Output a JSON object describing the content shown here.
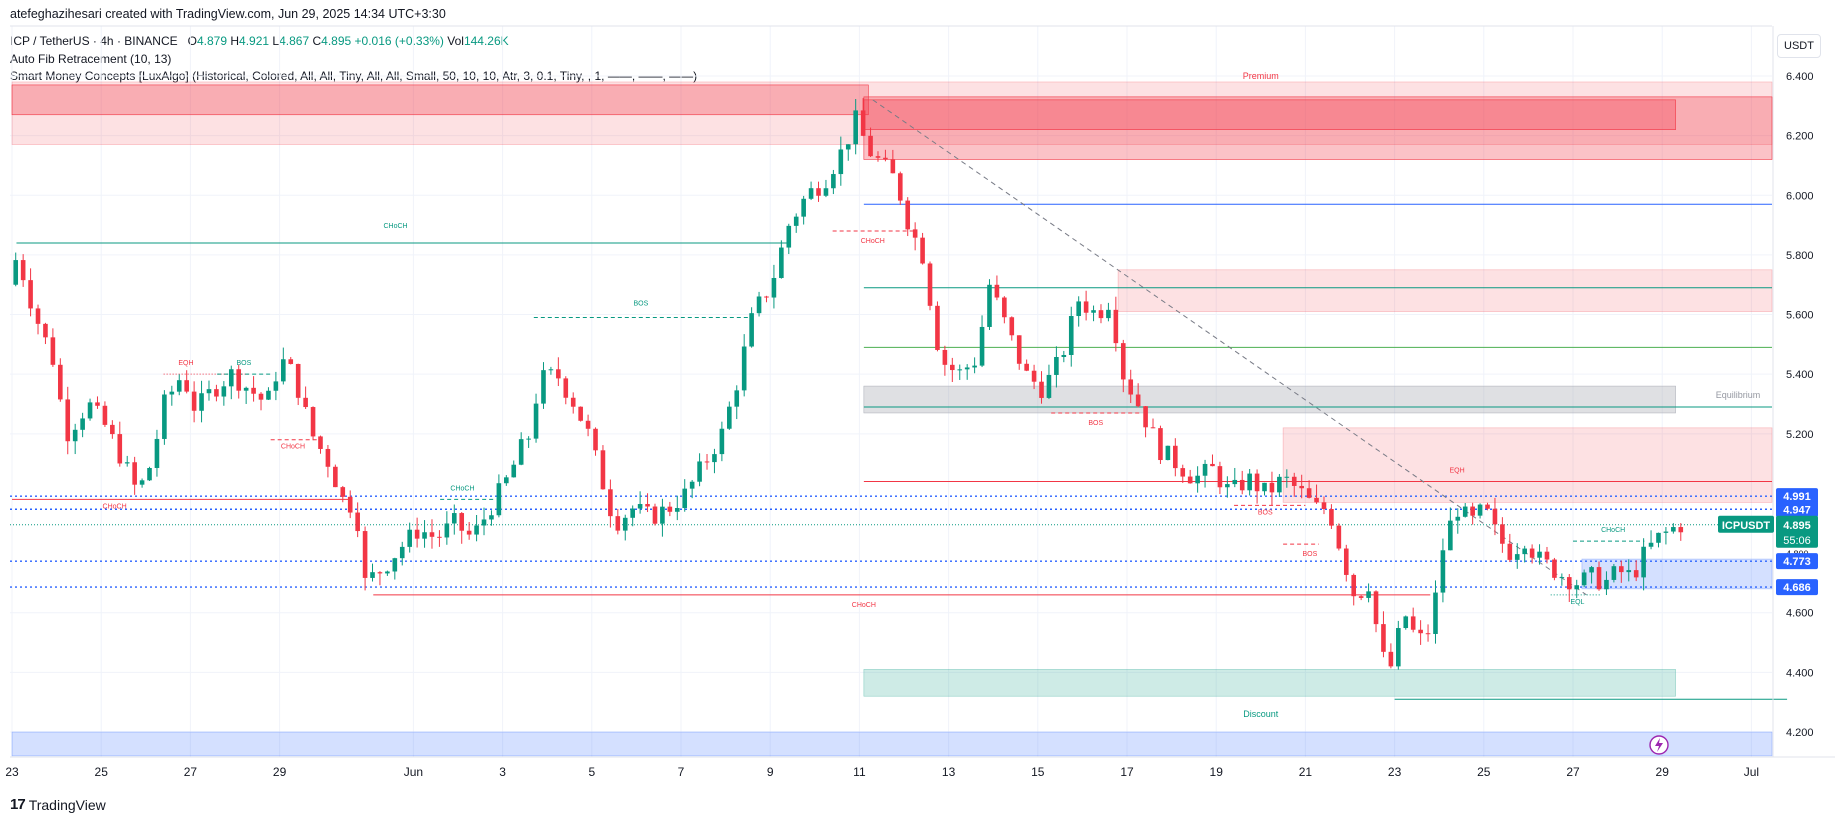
{
  "header": {
    "author_line": "atefeghazihesari created with TradingView.com, Jun 29, 2025 14:34 UTC+3:30",
    "symbol": "ICP / TetherUS · 4h · BINANCE",
    "ohlc": {
      "o_label": "O",
      "o": "4.879",
      "h_label": "H",
      "h": "4.921",
      "l_label": "L",
      "l": "4.867",
      "c_label": "C",
      "c": "4.895",
      "change": "+0.016 (+0.33%)",
      "vol_label": "Vol",
      "vol": "144.26K"
    },
    "indicator_fib": "Auto Fib Retracement (10, 13)",
    "indicator_smc": "Smart Money Concepts [LuxAlgo] (Historical, Colored, All, All, Tiny, All, All, Small, 50, 10, 10, Atr, 3, 0.1, Tiny, , 1, ——, ——, ——)"
  },
  "currency_button": "USDT",
  "brand": "TradingView",
  "colors": {
    "bull": "#089981",
    "bear": "#f23645",
    "blue": "#2962ff",
    "grid": "#f0f3fa"
  },
  "chart_data": {
    "type": "candlestick",
    "title": "ICP / TetherUS · 4h · BINANCE",
    "ylim": [
      4.12,
      6.52
    ],
    "y_ticks": [
      6.4,
      6.2,
      6.0,
      5.8,
      5.6,
      5.4,
      5.2,
      4.6,
      4.4,
      4.2
    ],
    "y_tick_labels": [
      "6.400",
      "6.200",
      "6.000",
      "5.800",
      "5.600",
      "5.400",
      "5.200",
      "4.600",
      "4.400",
      "4.200"
    ],
    "x_ticks": [
      {
        "label": "23",
        "day": 0
      },
      {
        "label": "25",
        "day": 2
      },
      {
        "label": "27",
        "day": 4
      },
      {
        "label": "29",
        "day": 6
      },
      {
        "label": "Jun",
        "day": 9
      },
      {
        "label": "3",
        "day": 11
      },
      {
        "label": "5",
        "day": 13
      },
      {
        "label": "7",
        "day": 15
      },
      {
        "label": "9",
        "day": 17
      },
      {
        "label": "11",
        "day": 19
      },
      {
        "label": "13",
        "day": 21
      },
      {
        "label": "15",
        "day": 23
      },
      {
        "label": "17",
        "day": 25
      },
      {
        "label": "19",
        "day": 27
      },
      {
        "label": "21",
        "day": 29
      },
      {
        "label": "23",
        "day": 31
      },
      {
        "label": "25",
        "day": 33
      },
      {
        "label": "27",
        "day": 35
      },
      {
        "label": "29",
        "day": 37
      },
      {
        "label": "Jul",
        "day": 39
      }
    ],
    "price_path": [
      [
        0,
        5.7
      ],
      [
        0.2,
        5.8
      ],
      [
        0.6,
        5.6
      ],
      [
        1.0,
        5.45
      ],
      [
        1.3,
        5.2
      ],
      [
        1.8,
        5.3
      ],
      [
        2.2,
        5.22
      ],
      [
        2.6,
        5.1
      ],
      [
        2.9,
        5.0
      ],
      [
        3.2,
        5.1
      ],
      [
        3.5,
        5.3
      ],
      [
        3.9,
        5.4
      ],
      [
        4.2,
        5.28
      ],
      [
        4.6,
        5.35
      ],
      [
        5.0,
        5.4
      ],
      [
        5.4,
        5.35
      ],
      [
        5.8,
        5.3
      ],
      [
        6.1,
        5.45
      ],
      [
        6.4,
        5.4
      ],
      [
        6.8,
        5.2
      ],
      [
        7.2,
        5.1
      ],
      [
        7.5,
        4.98
      ],
      [
        7.8,
        4.95
      ],
      [
        8.0,
        4.7
      ],
      [
        8.4,
        4.75
      ],
      [
        8.8,
        4.82
      ],
      [
        9.2,
        4.88
      ],
      [
        9.6,
        4.85
      ],
      [
        10.0,
        4.9
      ],
      [
        10.4,
        4.85
      ],
      [
        10.8,
        4.95
      ],
      [
        11.2,
        5.05
      ],
      [
        11.5,
        5.15
      ],
      [
        11.7,
        5.2
      ],
      [
        11.9,
        5.38
      ],
      [
        12.3,
        5.4
      ],
      [
        12.7,
        5.3
      ],
      [
        13.0,
        5.2
      ],
      [
        13.3,
        5.05
      ],
      [
        13.6,
        4.9
      ],
      [
        14.0,
        4.95
      ],
      [
        14.4,
        4.92
      ],
      [
        14.8,
        4.95
      ],
      [
        15.2,
        5.0
      ],
      [
        15.6,
        5.1
      ],
      [
        16.0,
        5.2
      ],
      [
        16.3,
        5.35
      ],
      [
        16.7,
        5.6
      ],
      [
        17.1,
        5.7
      ],
      [
        17.5,
        5.9
      ],
      [
        17.9,
        6.0
      ],
      [
        18.3,
        6.05
      ],
      [
        18.7,
        6.15
      ],
      [
        19.0,
        6.25
      ],
      [
        19.3,
        6.15
      ],
      [
        19.6,
        6.1
      ],
      [
        19.9,
        6.05
      ],
      [
        20.2,
        5.9
      ],
      [
        20.5,
        5.8
      ],
      [
        20.9,
        5.45
      ],
      [
        21.3,
        5.4
      ],
      [
        21.7,
        5.45
      ],
      [
        22.0,
        5.7
      ],
      [
        22.4,
        5.55
      ],
      [
        22.8,
        5.4
      ],
      [
        23.2,
        5.35
      ],
      [
        23.6,
        5.45
      ],
      [
        24.0,
        5.65
      ],
      [
        24.4,
        5.6
      ],
      [
        24.7,
        5.65
      ],
      [
        25.0,
        5.4
      ],
      [
        25.4,
        5.28
      ],
      [
        25.8,
        5.15
      ],
      [
        26.2,
        5.1
      ],
      [
        26.6,
        5.05
      ],
      [
        27.0,
        5.08
      ],
      [
        27.4,
        5.0
      ],
      [
        27.8,
        5.05
      ],
      [
        28.2,
        5.0
      ],
      [
        28.6,
        5.05
      ],
      [
        29.0,
        5.0
      ],
      [
        29.3,
        4.95
      ],
      [
        29.6,
        4.95
      ],
      [
        29.9,
        4.8
      ],
      [
        30.2,
        4.65
      ],
      [
        30.5,
        4.7
      ],
      [
        30.8,
        4.45
      ],
      [
        31.0,
        4.42
      ],
      [
        31.3,
        4.6
      ],
      [
        31.6,
        4.5
      ],
      [
        31.9,
        4.55
      ],
      [
        32.2,
        4.85
      ],
      [
        32.5,
        4.95
      ],
      [
        32.8,
        4.9
      ],
      [
        33.1,
        4.95
      ],
      [
        33.4,
        4.85
      ],
      [
        33.7,
        4.8
      ],
      [
        34.0,
        4.85
      ],
      [
        34.3,
        4.78
      ],
      [
        34.6,
        4.75
      ],
      [
        34.9,
        4.72
      ],
      [
        35.2,
        4.7
      ],
      [
        35.5,
        4.72
      ],
      [
        35.8,
        4.7
      ],
      [
        36.1,
        4.74
      ],
      [
        36.4,
        4.72
      ],
      [
        36.7,
        4.8
      ],
      [
        37.0,
        4.85
      ],
      [
        37.3,
        4.88
      ],
      [
        37.5,
        4.895
      ]
    ],
    "zones": [
      {
        "name": "premium-outer",
        "d0": 0,
        "d1": 40,
        "y0": 6.17,
        "y1": 6.38,
        "kind": "bear-light"
      },
      {
        "name": "premium-inner",
        "d0": 0,
        "d1": 19.2,
        "y0": 6.27,
        "y1": 6.37,
        "kind": "bear"
      },
      {
        "name": "ob-top",
        "d0": 19.1,
        "d1": 39.8,
        "y0": 6.12,
        "y1": 6.33,
        "kind": "bear"
      },
      {
        "name": "ob-top-inner",
        "d0": 19.1,
        "d1": 37.3,
        "y0": 6.22,
        "y1": 6.32,
        "kind": "bear"
      },
      {
        "name": "ob-mid",
        "d0": 24.8,
        "d1": 39.8,
        "y0": 5.61,
        "y1": 5.75,
        "kind": "bear-light"
      },
      {
        "name": "equilibrium",
        "d0": 19.1,
        "d1": 37.3,
        "y0": 5.27,
        "y1": 5.36,
        "kind": "grey"
      },
      {
        "name": "ob-low",
        "d0": 28.5,
        "d1": 39.8,
        "y0": 4.97,
        "y1": 5.22,
        "kind": "bear-light"
      },
      {
        "name": "demand",
        "d0": 35.2,
        "d1": 39.8,
        "y0": 4.68,
        "y1": 4.78,
        "kind": "blue"
      },
      {
        "name": "discount",
        "d0": 19.1,
        "d1": 37.3,
        "y0": 4.32,
        "y1": 4.41,
        "kind": "bull"
      },
      {
        "name": "bottom-band",
        "d0": 0,
        "d1": 40,
        "y0": 4.12,
        "y1": 4.2,
        "kind": "blue"
      }
    ],
    "fib_levels": [
      {
        "price": 5.97,
        "color": "#2962ff"
      },
      {
        "price": 5.69,
        "color": "#089981"
      },
      {
        "price": 5.49,
        "color": "#4caf50"
      },
      {
        "price": 5.29,
        "color": "#089981"
      },
      {
        "price": 5.04,
        "color": "#f23645"
      }
    ],
    "dotted_levels": [
      4.991,
      4.947,
      4.773,
      4.686
    ],
    "structure_lines": [
      {
        "label": "CHoCH",
        "d0": 0.1,
        "d1": 17.4,
        "price": 5.84,
        "color": "#089981",
        "style": "solid"
      },
      {
        "label": "BOS",
        "d0": 11.7,
        "d1": 16.5,
        "price": 5.59,
        "color": "#089981",
        "style": "dashed"
      },
      {
        "label": "EQH",
        "d0": 3.4,
        "d1": 5.3,
        "price": 5.4,
        "color": "#f23645",
        "style": "dotted"
      },
      {
        "label": "BOS",
        "d0": 4.6,
        "d1": 5.8,
        "price": 5.4,
        "color": "#089981",
        "style": "dashed"
      },
      {
        "label": "CHoCH",
        "d0": 5.8,
        "d1": 6.9,
        "price": 5.18,
        "color": "#f23645",
        "style": "dashed"
      },
      {
        "label": "CHoCH",
        "d0": 9.6,
        "d1": 10.8,
        "price": 4.98,
        "color": "#089981",
        "style": "dashed"
      },
      {
        "label": "CHoCH",
        "d0": 0,
        "d1": 7.6,
        "price": 4.98,
        "color": "#f23645",
        "style": "solid"
      },
      {
        "label": "CHoCH",
        "d0": 8.1,
        "d1": 31.8,
        "price": 4.66,
        "color": "#f23645",
        "style": "solid"
      },
      {
        "label": "CHoCH",
        "d0": 18.4,
        "d1": 20.2,
        "price": 5.88,
        "color": "#f23645",
        "style": "dashed"
      },
      {
        "label": "BOS",
        "d0": 23.3,
        "d1": 25.3,
        "price": 5.27,
        "color": "#f23645",
        "style": "dashed"
      },
      {
        "label": "BOS",
        "d0": 27.4,
        "d1": 29.0,
        "price": 4.96,
        "color": "#f23645",
        "style": "dashed"
      },
      {
        "label": "BOS",
        "d0": 28.5,
        "d1": 29.3,
        "price": 4.83,
        "color": "#f23645",
        "style": "dashed"
      },
      {
        "label": "EQH",
        "d0": 31.8,
        "d1": 33.0,
        "price": 5.04,
        "color": "#f23645",
        "style": "dotted"
      },
      {
        "label": "CHoCH",
        "d0": 35.0,
        "d1": 36.6,
        "price": 4.84,
        "color": "#089981",
        "style": "dashed"
      },
      {
        "label": "EQL",
        "d0": 34.5,
        "d1": 35.6,
        "price": 4.66,
        "color": "#089981",
        "style": "dotted"
      },
      {
        "label": "",
        "d0": 31.0,
        "d1": 39.8,
        "price": 4.31,
        "color": "#089981",
        "style": "solid"
      }
    ],
    "labels": [
      {
        "text": "Premium",
        "day": 28.0,
        "price": 6.39,
        "color": "#f23645"
      },
      {
        "text": "Equilibrium",
        "day": 38.7,
        "price": 5.32,
        "color": "#9598a1"
      },
      {
        "text": "Discount",
        "day": 28.0,
        "price": 4.25,
        "color": "#089981"
      },
      {
        "text": "CHoCH",
        "day": 8.6,
        "price": 5.89,
        "color": "#089981"
      },
      {
        "text": "BOS",
        "day": 14.1,
        "price": 5.63,
        "color": "#089981"
      },
      {
        "text": "EQH",
        "day": 3.9,
        "price": 5.43,
        "color": "#f23645"
      },
      {
        "text": "BOS",
        "day": 5.2,
        "price": 5.43,
        "color": "#089981"
      },
      {
        "text": "CHoCH",
        "day": 6.3,
        "price": 5.15,
        "color": "#f23645"
      },
      {
        "text": "CHoCH",
        "day": 10.1,
        "price": 5.01,
        "color": "#089981"
      },
      {
        "text": "CHoCH",
        "day": 2.3,
        "price": 4.95,
        "color": "#f23645"
      },
      {
        "text": "CHoCH",
        "day": 19.1,
        "price": 4.62,
        "color": "#f23645"
      },
      {
        "text": "CHoCH",
        "day": 19.3,
        "price": 5.84,
        "color": "#f23645"
      },
      {
        "text": "BOS",
        "day": 24.3,
        "price": 5.23,
        "color": "#f23645"
      },
      {
        "text": "BOS",
        "day": 28.1,
        "price": 4.93,
        "color": "#f23645"
      },
      {
        "text": "BOS",
        "day": 29.1,
        "price": 4.79,
        "color": "#f23645"
      },
      {
        "text": "EQH",
        "day": 32.4,
        "price": 5.07,
        "color": "#f23645"
      },
      {
        "text": "CHoCH",
        "day": 35.9,
        "price": 4.87,
        "color": "#089981"
      },
      {
        "text": "EQL",
        "day": 35.1,
        "price": 4.63,
        "color": "#089981"
      }
    ],
    "trendline": {
      "d0": 19.3,
      "p0": 6.32,
      "d1": 35.3,
      "p1": 4.66
    },
    "price_badges": [
      {
        "text": "4.991",
        "price": 4.991,
        "color": "#2962ff"
      },
      {
        "text": "4.947",
        "price": 4.947,
        "color": "#2962ff"
      },
      {
        "text": "4.773",
        "price": 4.773,
        "color": "#2962ff"
      },
      {
        "text": "4.686",
        "price": 4.686,
        "color": "#2962ff"
      }
    ],
    "last_price": {
      "symbol": "ICPUSDT",
      "price_text": "4.895",
      "price": 4.895,
      "countdown": "55:06"
    },
    "crowded_tick": {
      "text": "4.800",
      "price": 4.8
    }
  }
}
